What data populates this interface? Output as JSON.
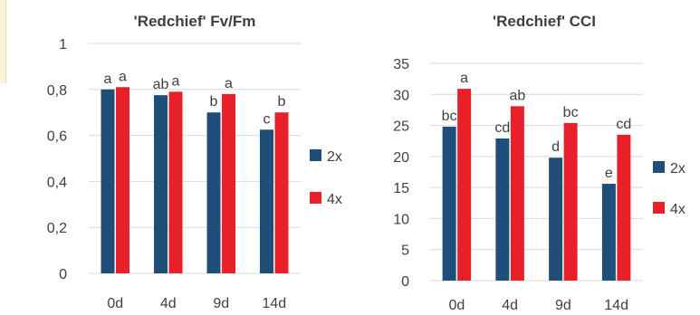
{
  "chart_data": [
    {
      "type": "bar",
      "title": "'Redchief' Fv/Fm",
      "xlabel": "",
      "ylabel": "",
      "categories": [
        "0d",
        "4d",
        "9d",
        "14d"
      ],
      "ylim": [
        0,
        1
      ],
      "yticks": [
        0,
        0.2,
        0.4,
        0.6,
        0.8,
        1
      ],
      "ytick_labels": [
        "0",
        "0,2",
        "0,4",
        "0,6",
        "0,8",
        "1"
      ],
      "grid": true,
      "legend": "right",
      "series": [
        {
          "name": "2x",
          "color": "#1f4e79",
          "values": [
            0.8,
            0.775,
            0.7,
            0.625
          ],
          "labels": [
            "a",
            "ab",
            "b",
            "c"
          ]
        },
        {
          "name": "4x",
          "color": "#e8202a",
          "values": [
            0.81,
            0.79,
            0.78,
            0.7
          ],
          "labels": [
            "a",
            "a",
            "a",
            "b"
          ]
        }
      ]
    },
    {
      "type": "bar",
      "title": "'Redchief' CCI",
      "xlabel": "",
      "ylabel": "",
      "categories": [
        "0d",
        "4d",
        "9d",
        "14d"
      ],
      "ylim": [
        0,
        35
      ],
      "yticks": [
        0,
        5,
        10,
        15,
        20,
        25,
        30,
        35
      ],
      "ytick_labels": [
        "0",
        "5",
        "10",
        "15",
        "20",
        "25",
        "30",
        "35"
      ],
      "grid": true,
      "legend": "right",
      "series": [
        {
          "name": "2x",
          "color": "#1f4e79",
          "values": [
            24.8,
            22.9,
            19.8,
            15.6
          ],
          "labels": [
            "bc",
            "cd",
            "d",
            "e"
          ]
        },
        {
          "name": "4x",
          "color": "#e8202a",
          "values": [
            30.9,
            28.1,
            25.4,
            23.5
          ],
          "labels": [
            "a",
            "ab",
            "bc",
            "cd"
          ]
        }
      ]
    }
  ]
}
